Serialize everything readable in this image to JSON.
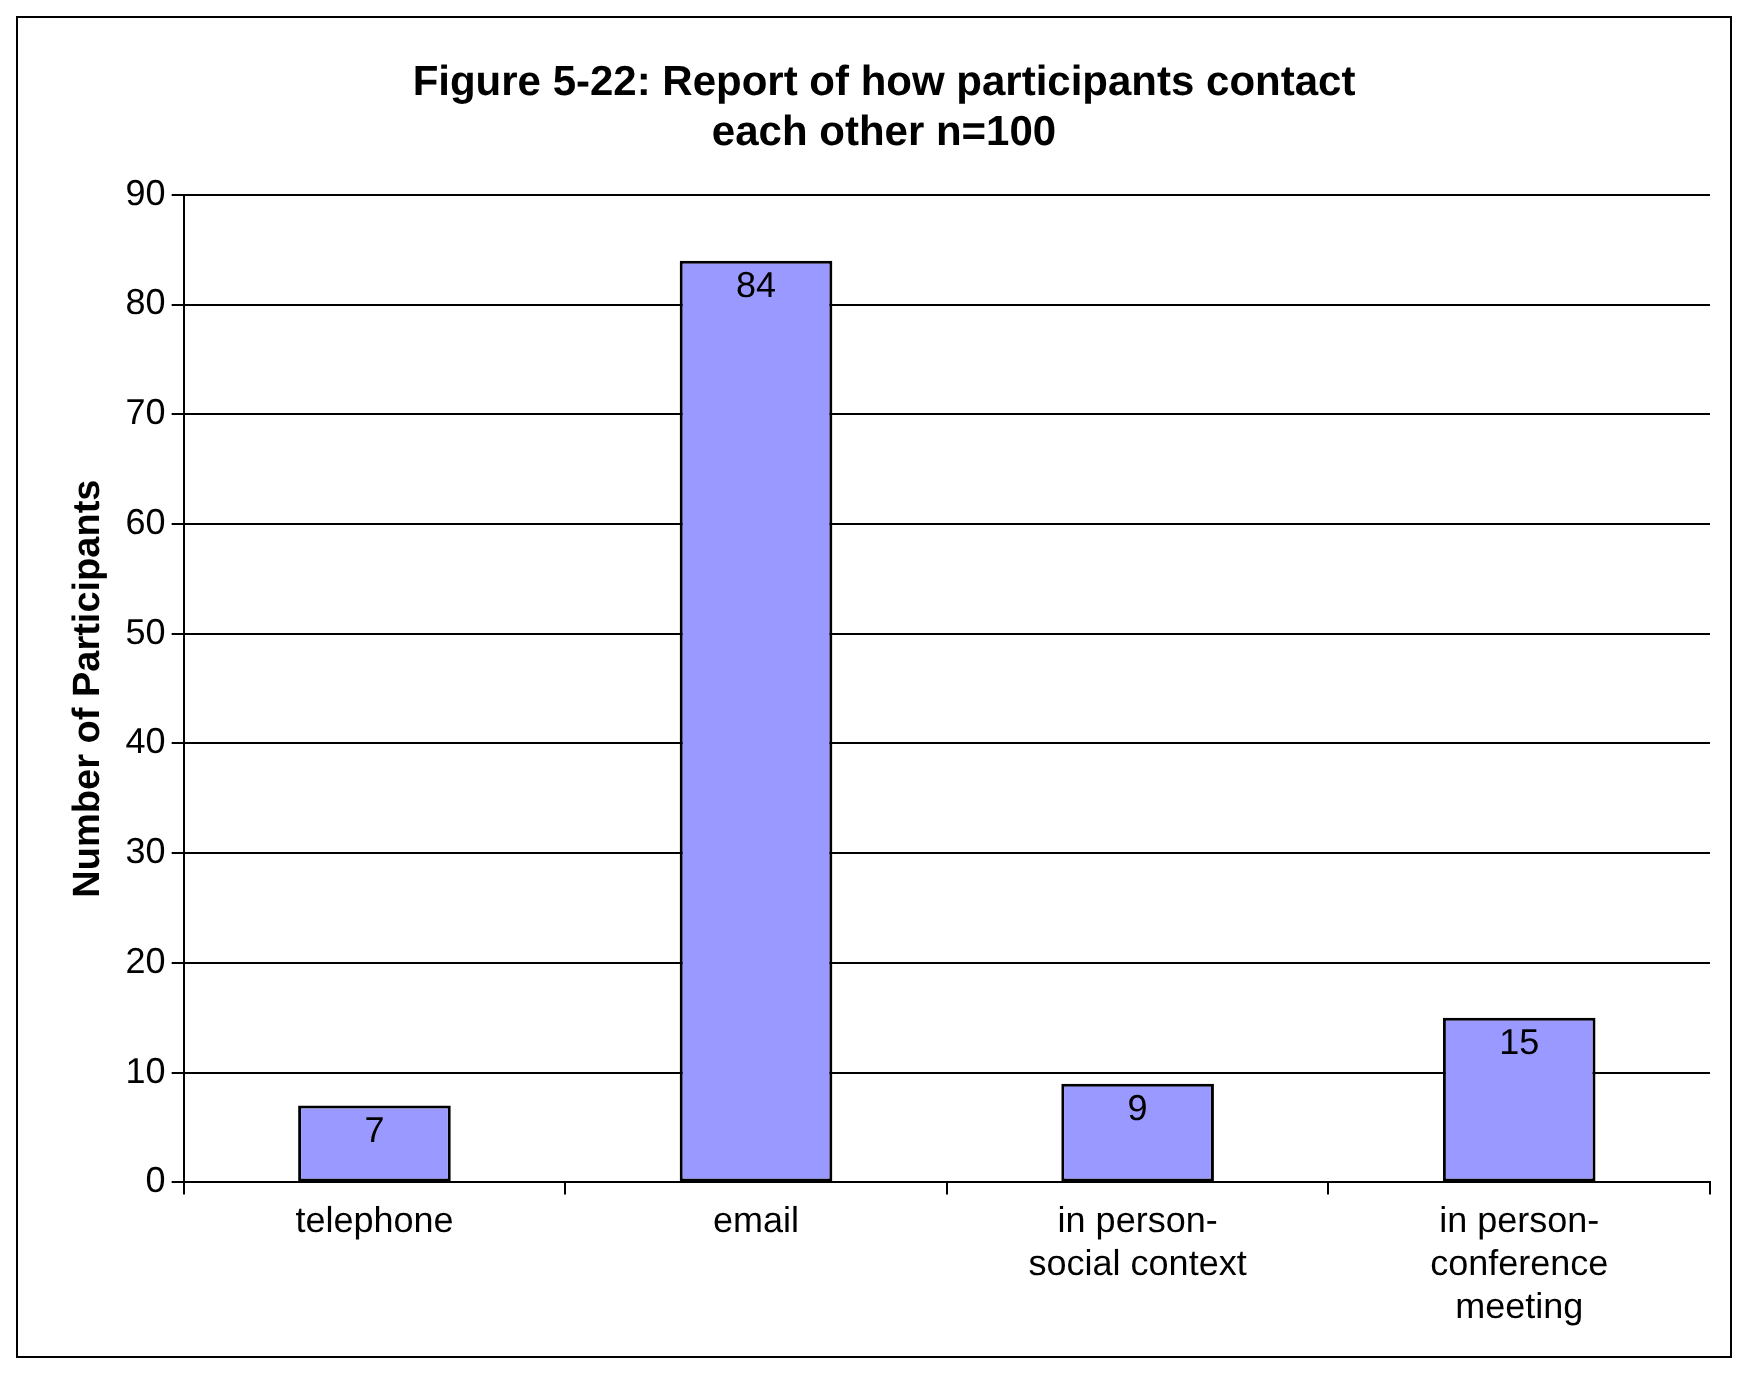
{
  "chart_data": {
    "type": "bar",
    "title": "Figure 5-22: Report of how participants contact each other n=100",
    "ylabel": "Number of Participants",
    "categories": [
      "telephone",
      "email",
      "in person-\nsocial context",
      "in person-\nconference\nmeeting"
    ],
    "values": [
      7,
      84,
      9,
      15
    ],
    "color": "#9999ff",
    "ylim": [
      0,
      90
    ],
    "yticks": [
      0,
      10,
      20,
      30,
      40,
      50,
      60,
      70,
      80,
      90
    ],
    "grid": "y",
    "data_labels": true,
    "legend": false
  }
}
